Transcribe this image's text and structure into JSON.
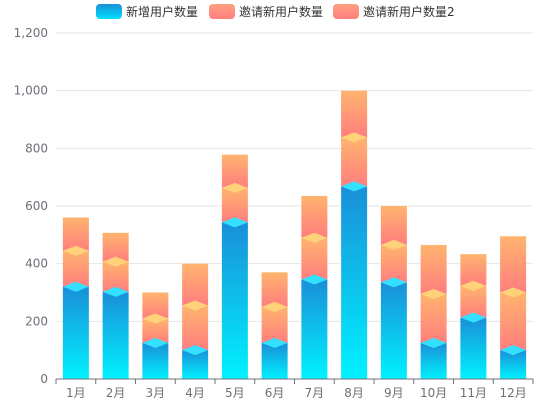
{
  "chart_data": {
    "type": "bar",
    "stacked": true,
    "categories": [
      "1月",
      "2月",
      "3月",
      "4月",
      "5月",
      "6月",
      "7月",
      "8月",
      "9月",
      "10月",
      "11月",
      "12月"
    ],
    "series": [
      {
        "name": "新增用户数量",
        "values": [
          320,
          302,
          125,
          100,
          543,
          125,
          345,
          668,
          335,
          125,
          213,
          100
        ],
        "color_top": "#1a8fd8",
        "color_bottom": "#00f2ff",
        "cap": "#33e0ff"
      },
      {
        "name": "邀请新用户数量",
        "values": [
          125,
          105,
          85,
          155,
          120,
          125,
          145,
          170,
          130,
          170,
          110,
          200
        ],
        "color_top": "#ffb46e",
        "color_bottom": "#ff7e7e",
        "cap": "#ffd27a"
      },
      {
        "name": "邀请新用户数量2",
        "values": [
          115,
          100,
          90,
          145,
          115,
          120,
          145,
          162,
          135,
          170,
          110,
          195
        ],
        "color_top": "#ffb46e",
        "color_bottom": "#ff7e7e",
        "cap": "#ffd27a"
      }
    ],
    "yticks": [
      "0",
      "200",
      "400",
      "600",
      "800",
      "1,000",
      "1,200"
    ],
    "ylim": [
      0,
      1200
    ],
    "grid": true,
    "legend_position": "top-center"
  }
}
